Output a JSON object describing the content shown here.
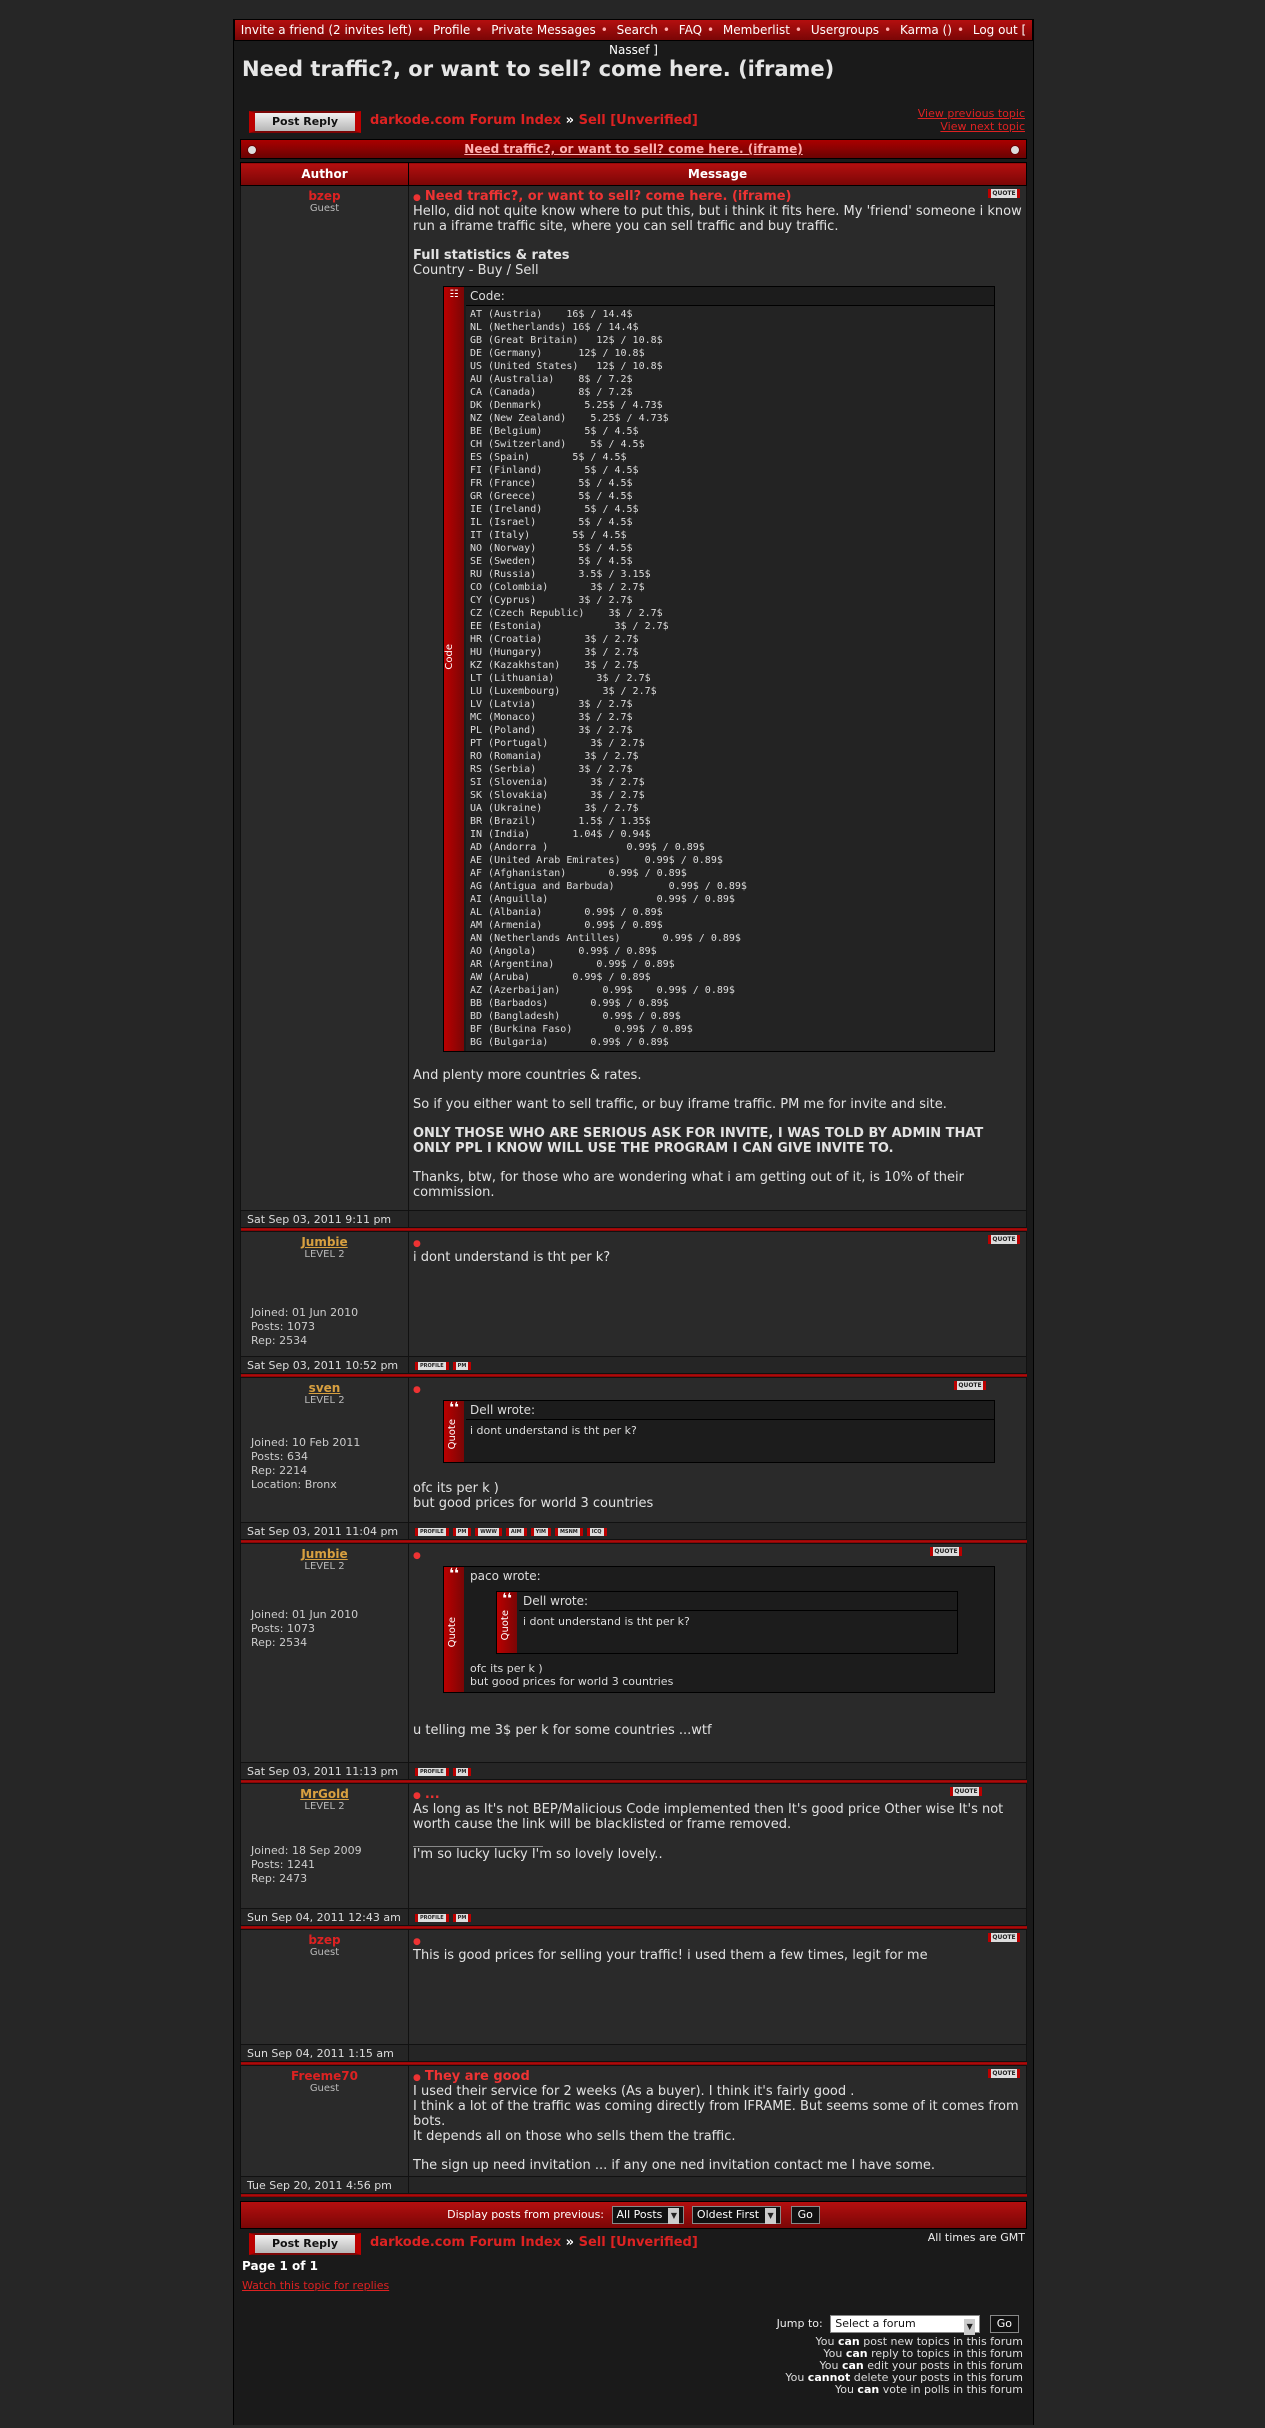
{
  "topnav": {
    "items": [
      "Invite a friend (2 invites left)",
      "Profile",
      "Private Messages",
      "Search",
      "FAQ",
      "Memberlist",
      "Usergroups",
      "Karma ()",
      "Log out [ Nassef ]"
    ]
  },
  "page_title": "Need traffic?, or want to sell? come here. (iframe)",
  "post_reply_label": "Post Reply",
  "breadcrumb": {
    "forum_index": "darkode.com Forum Index",
    "separator": "»",
    "section": "Sell [Unverified]"
  },
  "topic_links": {
    "prev": "View previous topic",
    "next": "View next topic"
  },
  "topic_bar_title": "Need traffic?, or want to sell? come here. (iframe)",
  "table_headers": {
    "author": "Author",
    "message": "Message"
  },
  "quote_label": "QUOTE",
  "btn_labels": {
    "profile": "PROFILE",
    "pm": "PM",
    "www": "WWW",
    "aim": "AIM",
    "yim": "YIM",
    "msnm": "MSNM",
    "icq": "ICQ"
  },
  "post1": {
    "author": "bzep",
    "rank": "Guest",
    "date": "Sat Sep 03, 2011 9:11 pm",
    "title": "Need traffic?, or want to sell? come here. (iframe)",
    "intro": "Hello, did not quite know where to put this, but i think it fits here. My 'friend' someone i know run a iframe traffic site, where you can sell traffic and buy traffic.",
    "stats_heading": "Full statistics & rates",
    "stats_sub": "Country - Buy / Sell",
    "code_header": "Code:",
    "code_side": "Code",
    "code_lines": [
      "AT (Austria)    16$ / 14.4$",
      "NL (Netherlands) 16$ / 14.4$",
      "GB (Great Britain)   12$ / 10.8$",
      "DE (Germany)      12$ / 10.8$",
      "US (United States)   12$ / 10.8$",
      "AU (Australia)    8$ / 7.2$",
      "CA (Canada)       8$ / 7.2$",
      "DK (Denmark)       5.25$ / 4.73$",
      "NZ (New Zealand)    5.25$ / 4.73$",
      "BE (Belgium)       5$ / 4.5$",
      "CH (Switzerland)    5$ / 4.5$",
      "ES (Spain)       5$ / 4.5$",
      "FI (Finland)       5$ / 4.5$",
      "FR (France)       5$ / 4.5$",
      "GR (Greece)       5$ / 4.5$",
      "IE (Ireland)       5$ / 4.5$",
      "IL (Israel)       5$ / 4.5$",
      "IT (Italy)       5$ / 4.5$",
      "NO (Norway)       5$ / 4.5$",
      "SE (Sweden)       5$ / 4.5$",
      "RU (Russia)       3.5$ / 3.15$",
      "CO (Colombia)       3$ / 2.7$",
      "CY (Cyprus)       3$ / 2.7$",
      "CZ (Czech Republic)    3$ / 2.7$",
      "EE (Estonia)            3$ / 2.7$",
      "HR (Croatia)       3$ / 2.7$",
      "HU (Hungary)       3$ / 2.7$",
      "KZ (Kazakhstan)    3$ / 2.7$",
      "LT (Lithuania)       3$ / 2.7$",
      "LU (Luxembourg)       3$ / 2.7$",
      "LV (Latvia)       3$ / 2.7$",
      "MC (Monaco)       3$ / 2.7$",
      "PL (Poland)       3$ / 2.7$",
      "PT (Portugal)       3$ / 2.7$",
      "RO (Romania)       3$ / 2.7$",
      "RS (Serbia)       3$ / 2.7$",
      "SI (Slovenia)       3$ / 2.7$",
      "SK (Slovakia)       3$ / 2.7$",
      "UA (Ukraine)       3$ / 2.7$",
      "BR (Brazil)       1.5$ / 1.35$",
      "IN (India)       1.04$ / 0.94$",
      "AD (Andorra )             0.99$ / 0.89$",
      "AE (United Arab Emirates)    0.99$ / 0.89$",
      "AF (Afghanistan)       0.99$ / 0.89$",
      "AG (Antigua and Barbuda)         0.99$ / 0.89$",
      "AI (Anguilla)                  0.99$ / 0.89$",
      "AL (Albania)       0.99$ / 0.89$",
      "AM (Armenia)       0.99$ / 0.89$",
      "AN (Netherlands Antilles)       0.99$ / 0.89$",
      "AO (Angola)       0.99$ / 0.89$",
      "AR (Argentina)       0.99$ / 0.89$",
      "AW (Aruba)       0.99$ / 0.89$",
      "AZ (Azerbaijan)       0.99$    0.99$ / 0.89$",
      "BB (Barbados)       0.99$ / 0.89$",
      "BD (Bangladesh)       0.99$ / 0.89$",
      "BF (Burkina Faso)       0.99$ / 0.89$",
      "BG (Bulgaria)       0.99$ / 0.89$"
    ],
    "after1": "And plenty more countries & rates.",
    "after2": "So if you either want to sell traffic, or buy iframe traffic. PM me for invite and site.",
    "after3": "ONLY THOSE WHO ARE SERIOUS ASK FOR INVITE, I WAS TOLD BY ADMIN THAT ONLY PPL I KNOW WILL USE THE PROGRAM I CAN GIVE INVITE TO.",
    "after4": "Thanks, btw, for those who are wondering what i am getting out of it, is 10% of their commission."
  },
  "post2": {
    "author": "Jumbie",
    "rank": "LEVEL 2",
    "joined": "Joined: 01 Jun 2010",
    "posts": "Posts: 1073",
    "rep": "Rep: 2534",
    "date": "Sat Sep 03, 2011 10:52 pm",
    "text": "i dont understand is tht per k?"
  },
  "post3": {
    "author": "sven",
    "rank": "LEVEL 2",
    "joined": "Joined: 10 Feb 2011",
    "posts": "Posts: 634",
    "rep": "Rep: 2214",
    "location": "Location: Bronx",
    "date": "Sat Sep 03, 2011 11:04 pm",
    "quote_head": "Dell wrote:",
    "quote_side": "Quote",
    "quote_text": "i dont understand is tht per k?",
    "text1": "ofc its per k )",
    "text2": "but good prices for world 3 countries"
  },
  "post4": {
    "author": "Jumbie",
    "rank": "LEVEL 2",
    "joined": "Joined: 01 Jun 2010",
    "posts": "Posts: 1073",
    "rep": "Rep: 2534",
    "date": "Sat Sep 03, 2011 11:13 pm",
    "outer_head": "paco wrote:",
    "inner_head": "Dell wrote:",
    "inner_text": "i dont understand is tht per k?",
    "outer_text1": "ofc its per k )",
    "outer_text2": "but good prices for world 3 countries",
    "text": "u telling me 3$ per k for some countries ...wtf"
  },
  "post5": {
    "author": "MrGold",
    "rank": "LEVEL 2",
    "joined": "Joined: 18 Sep 2009",
    "posts": "Posts: 1241",
    "rep": "Rep: 2473",
    "date": "Sun Sep 04, 2011 12:43 am",
    "title": "...",
    "text": "As long as It's not BEP/Malicious Code implemented then It's good price Other wise It's not worth cause the link will be blacklisted or frame removed.",
    "sig": "I'm so lucky lucky I'm so lovely lovely.."
  },
  "post6": {
    "author": "bzep",
    "rank": "Guest",
    "date": "Sun Sep 04, 2011 1:15 am",
    "text": "This is good prices for selling your traffic! i used them a few times, legit for me"
  },
  "post7": {
    "author": "Freeme70",
    "rank": "Guest",
    "date": "Tue Sep 20, 2011 4:56 pm",
    "title": "They are good",
    "l1": "I used their service for 2 weeks (As a buyer). I think it's fairly good .",
    "l2": "I think a lot of the traffic was coming directly from IFRAME. But seems some of it comes from bots.",
    "l3": "It depends all on those who sells them the traffic.",
    "l4": "The sign up need invitation ... if any one ned invitation contact me I have some."
  },
  "display_bar": {
    "label": "Display posts from previous:",
    "sel1": "All Posts",
    "sel2": "Oldest First",
    "go": "Go"
  },
  "timezone": "All times are GMT",
  "page_of": "Page 1 of 1",
  "watch": "Watch this topic for replies",
  "jump": {
    "label": "Jump to:",
    "select": "Select a forum",
    "go": "Go"
  },
  "rights": [
    {
      "pre": "You ",
      "b": "can",
      "post": " post new topics in this forum"
    },
    {
      "pre": "You ",
      "b": "can",
      "post": " reply to topics in this forum"
    },
    {
      "pre": "You ",
      "b": "can",
      "post": " edit your posts in this forum"
    },
    {
      "pre": "You ",
      "b": "cannot",
      "post": " delete your posts in this forum"
    },
    {
      "pre": "You ",
      "b": "can",
      "post": " vote in polls in this forum"
    }
  ]
}
